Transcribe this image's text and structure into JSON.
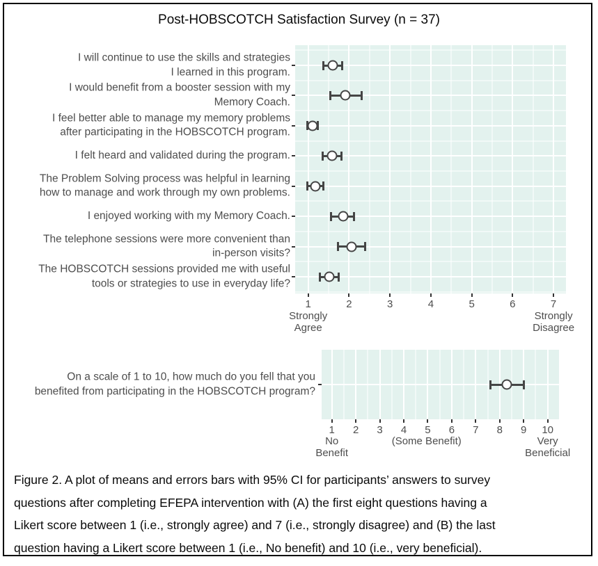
{
  "title": "Post-HOBSCOTCH Satisfaction Survey (n = 37)",
  "caption": {
    "lines": [
      "Figure 2. A plot of means and errors bars with 95% CI for participants’ answers to survey",
      "questions after completing EFEPA intervention with (A) the first eight questions having a",
      "Likert score between 1 (i.e., strongly agree) and 7 (i.e., strongly disagree) and (B) the last",
      "question having a Likert score between 1 (i.e., No benefit) and 10 (i.e., very beneficial)."
    ]
  },
  "colors": {
    "panel_background": "#e3f2ee",
    "gridline": "#ffffff",
    "marker_stroke": "#454545",
    "marker_fill": "#ffffff",
    "axis_text": "#4d4d4d",
    "tick_mark": "#333333",
    "title_text": "#0a0a0a",
    "border": "#000000"
  },
  "chart_data": [
    {
      "id": "panel_a",
      "type": "scatter",
      "marker": "mean_point_with_95ci_error_bars",
      "orientation": "horizontal",
      "grid": "white major at integers and rows, faint minor at halves, on mint background",
      "legend": "none",
      "xlim": [
        0.68,
        7.31
      ],
      "x_ticks": [
        1,
        2,
        3,
        4,
        5,
        6,
        7
      ],
      "x_end_labels": [
        {
          "at": 1,
          "text": "Strongly\nAgree"
        },
        {
          "at": 7,
          "text": "Strongly\nDisagree"
        }
      ],
      "items": [
        {
          "label": "I will continue to use the skills and strategies\nI learned in this program.",
          "mean": 1.6,
          "ci": [
            1.37,
            1.83
          ]
        },
        {
          "label": "I would benefit from a booster session with my\nMemory Coach.",
          "mean": 1.91,
          "ci": [
            1.54,
            2.3
          ]
        },
        {
          "label": "I feel better able to manage my memory problems\nafter participating in the HOBSCOTCH program.",
          "mean": 1.11,
          "ci": [
            0.98,
            1.23
          ]
        },
        {
          "label": "I felt heard and validated during the program.",
          "mean": 1.58,
          "ci": [
            1.35,
            1.82
          ]
        },
        {
          "label": "The Problem Solving process was helpful in learning\nhow to manage and work through my own problems.",
          "mean": 1.17,
          "ci": [
            0.98,
            1.37
          ]
        },
        {
          "label": "I enjoyed working with my Memory Coach.",
          "mean": 1.86,
          "ci": [
            1.56,
            2.12
          ]
        },
        {
          "label": "The telephone sessions were more convenient than\nin-person visits?",
          "mean": 2.06,
          "ci": [
            1.73,
            2.39
          ]
        },
        {
          "label": "The HOBSCOTCH sessions provided me with useful\ntools or strategies to use in everyday life?",
          "mean": 1.51,
          "ci": [
            1.28,
            1.75
          ]
        }
      ]
    },
    {
      "id": "panel_b",
      "type": "scatter",
      "marker": "mean_point_with_95ci_error_bars",
      "orientation": "horizontal",
      "grid": "white major at integers and row, faint minor at halves, on mint background",
      "legend": "none",
      "xlim": [
        0.57,
        10.47
      ],
      "x_ticks": [
        1,
        2,
        3,
        4,
        5,
        6,
        7,
        8,
        9,
        10
      ],
      "x_end_labels": [
        {
          "at": 1,
          "text": "No\nBenefit"
        },
        {
          "at": 4.95,
          "text": "(Some Benefit)"
        },
        {
          "at": 10,
          "text": "Very\nBeneficial"
        }
      ],
      "items": [
        {
          "label": "On a scale of 1 to 10, how much do you fell that you\nbenefited from participating in the HOBSCOTCH program?",
          "mean": 8.3,
          "ci": [
            7.6,
            9.0
          ]
        }
      ]
    }
  ]
}
